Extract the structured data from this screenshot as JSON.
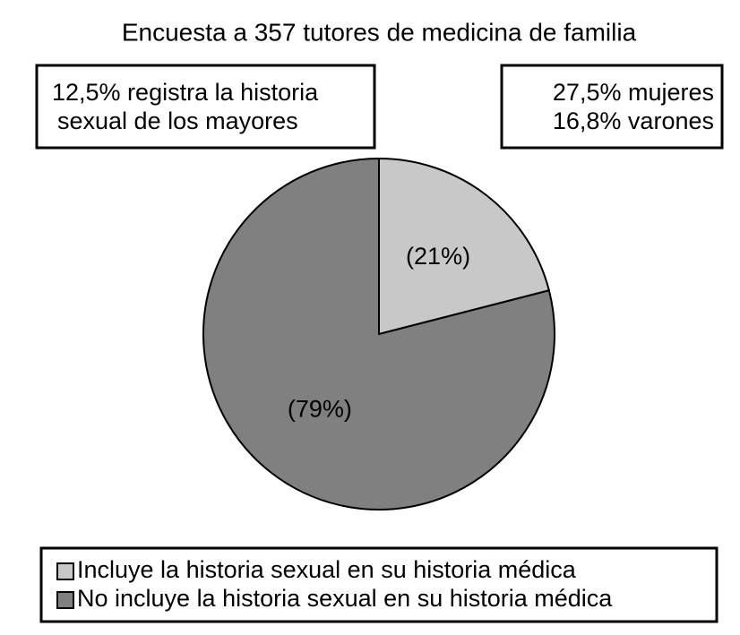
{
  "chart_data": {
    "type": "pie",
    "title": "Encuesta a 357 tutores de medicina de familia",
    "categories": [
      "Incluye la historia sexual en su historia médica",
      "No incluye la historia sexual en su historia médica"
    ],
    "values": [
      21,
      79
    ],
    "value_labels": [
      "(21%)",
      "(79%)"
    ],
    "colors": [
      "#c8c8c8",
      "#808080"
    ],
    "annotations": [
      [
        "12,5% registra la historia",
        "sexual de los mayores"
      ],
      [
        "27,5% mujeres",
        "16,8% varones"
      ]
    ]
  }
}
